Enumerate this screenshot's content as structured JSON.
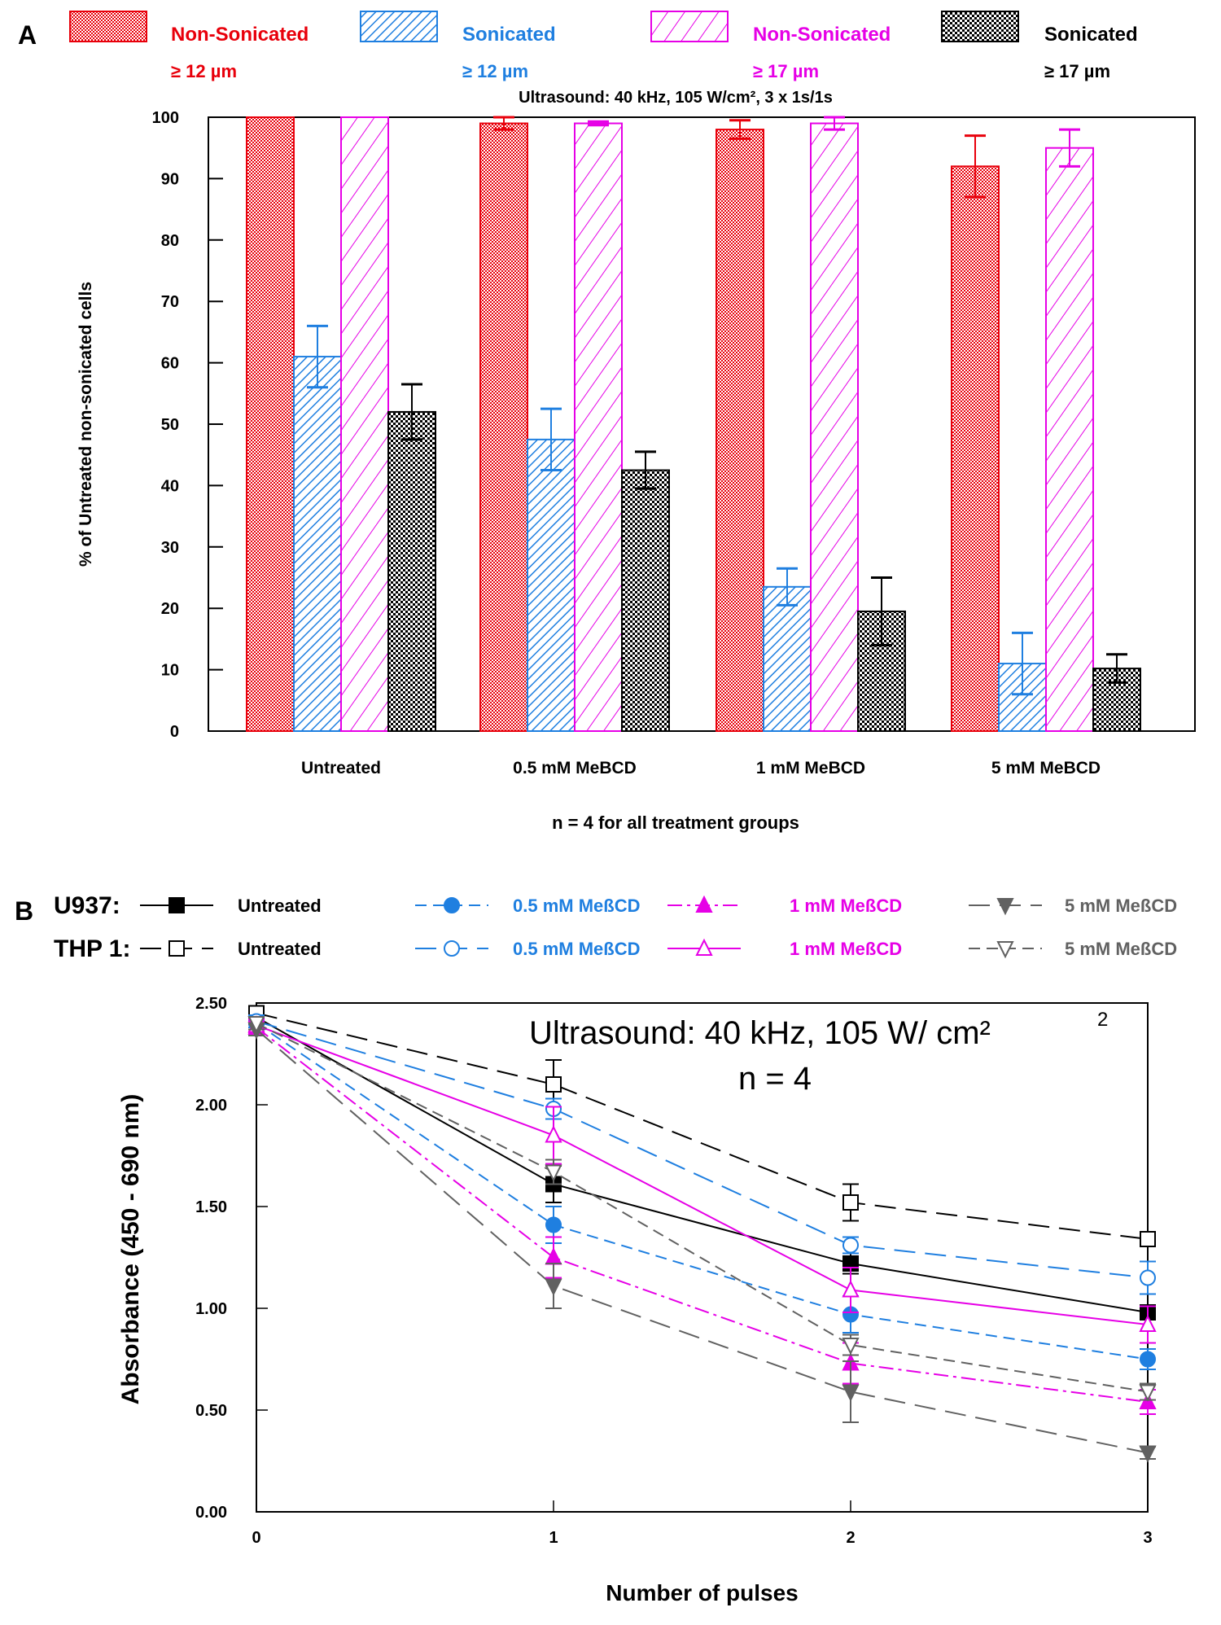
{
  "panel_labels": {
    "a": "A",
    "b": "B"
  },
  "chart_data": [
    {
      "type": "bar",
      "panel": "A",
      "title": "Ultrasound: 40 kHz, 105 W/cm², 3 x 1s/1s",
      "xlabel": "n = 4 for all treatment groups",
      "ylabel": "% of Untreated non-sonicated cells",
      "ylim": [
        0,
        100
      ],
      "yticks": [
        0,
        10,
        20,
        30,
        40,
        50,
        60,
        70,
        80,
        90,
        100
      ],
      "categories": [
        "Untreated",
        "0.5 mM MeBCD",
        "1 mM MeBCD",
        "5 mM MeBCD"
      ],
      "legend_position": "top",
      "series": [
        {
          "name": "Non-Sonicated",
          "size": "≥ 12 µm",
          "color": "#e8000b",
          "pattern": "checker",
          "values": [
            100,
            99,
            98,
            92
          ],
          "errors": [
            0,
            1.0,
            1.5,
            5
          ]
        },
        {
          "name": "Sonicated",
          "size": "≥ 12 µm",
          "color": "#1f7fe0",
          "pattern": "fine-hatch",
          "values": [
            61,
            47.5,
            23.5,
            11
          ],
          "errors": [
            5,
            5,
            3,
            5
          ]
        },
        {
          "name": "Non-Sonicated",
          "size": "≥ 17 µm",
          "color": "#e600e6",
          "pattern": "wide-hatch",
          "values": [
            100,
            99,
            99,
            95
          ],
          "errors": [
            0,
            0.3,
            1.0,
            3
          ]
        },
        {
          "name": "Sonicated",
          "size": "≥ 17 µm",
          "color": "#000000",
          "pattern": "checker",
          "values": [
            52,
            42.5,
            19.5,
            10.2
          ],
          "errors": [
            4.5,
            3,
            5.5,
            2.3
          ]
        }
      ]
    },
    {
      "type": "line",
      "panel": "B",
      "annotation": "Ultrasound: 40 kHz, 105 W/ cm²",
      "annotation_sup": "2",
      "annotation_n": "n = 4",
      "xlabel": "Number of pulses",
      "ylabel": "Absorbance (450 - 690 nm)",
      "xlim": [
        0,
        3
      ],
      "ylim": [
        0,
        2.5
      ],
      "xticks": [
        0,
        1,
        2,
        3
      ],
      "yticks": [
        "0.00",
        "0.50",
        "1.00",
        "1.50",
        "2.00",
        "2.50"
      ],
      "x": [
        0,
        1,
        2,
        3
      ],
      "legend_groups": [
        {
          "label": "U937:"
        },
        {
          "label": "THP 1:"
        }
      ],
      "series": [
        {
          "cell": "U937",
          "name": "Untreated",
          "color": "#000000",
          "marker": "square-filled",
          "dash": "solid",
          "values": [
            2.43,
            1.61,
            1.22,
            0.98
          ],
          "errors": [
            0.03,
            0.09,
            0.05,
            0.03
          ]
        },
        {
          "cell": "THP 1",
          "name": "Untreated",
          "color": "#000000",
          "marker": "square-open",
          "dash": "long-dash",
          "values": [
            2.45,
            2.1,
            1.52,
            1.34
          ],
          "errors": [
            0.03,
            0.12,
            0.09,
            0.03
          ]
        },
        {
          "cell": "U937",
          "name": "0.5 mM MeßCD",
          "color": "#1f7fe0",
          "marker": "circle-filled",
          "dash": "dash",
          "values": [
            2.4,
            1.41,
            0.97,
            0.75
          ],
          "errors": [
            0.03,
            0.09,
            0.09,
            0.05
          ]
        },
        {
          "cell": "THP 1",
          "name": "0.5 mM MeßCD",
          "color": "#1f7fe0",
          "marker": "circle-open",
          "dash": "long-dash",
          "values": [
            2.41,
            1.98,
            1.31,
            1.15
          ],
          "errors": [
            0.03,
            0.05,
            0.04,
            0.08
          ]
        },
        {
          "cell": "U937",
          "name": "1 mM MeßCD",
          "color": "#e600e6",
          "marker": "triangle-up-filled",
          "dash": "dash-dot",
          "values": [
            2.38,
            1.25,
            0.73,
            0.54
          ],
          "errors": [
            0.03,
            0.1,
            0.1,
            0.06
          ]
        },
        {
          "cell": "THP 1",
          "name": "1 mM MeßCD",
          "color": "#e600e6",
          "marker": "triangle-up-open",
          "dash": "solid",
          "values": [
            2.39,
            1.85,
            1.09,
            0.92
          ],
          "errors": [
            0.03,
            0.14,
            0.11,
            0.09
          ]
        },
        {
          "cell": "U937",
          "name": "5 mM MeßCD",
          "color": "#616161",
          "marker": "triangle-down-filled",
          "dash": "long-dash",
          "values": [
            2.37,
            1.11,
            0.59,
            0.29
          ],
          "errors": [
            0.03,
            0.11,
            0.15,
            0.03
          ]
        },
        {
          "cell": "THP 1",
          "name": "5 mM MeßCD",
          "color": "#616161",
          "marker": "triangle-down-open",
          "dash": "dash",
          "values": [
            2.4,
            1.67,
            0.82,
            0.59
          ],
          "errors": [
            0.03,
            0.06,
            0.05,
            0.04
          ]
        }
      ]
    }
  ]
}
